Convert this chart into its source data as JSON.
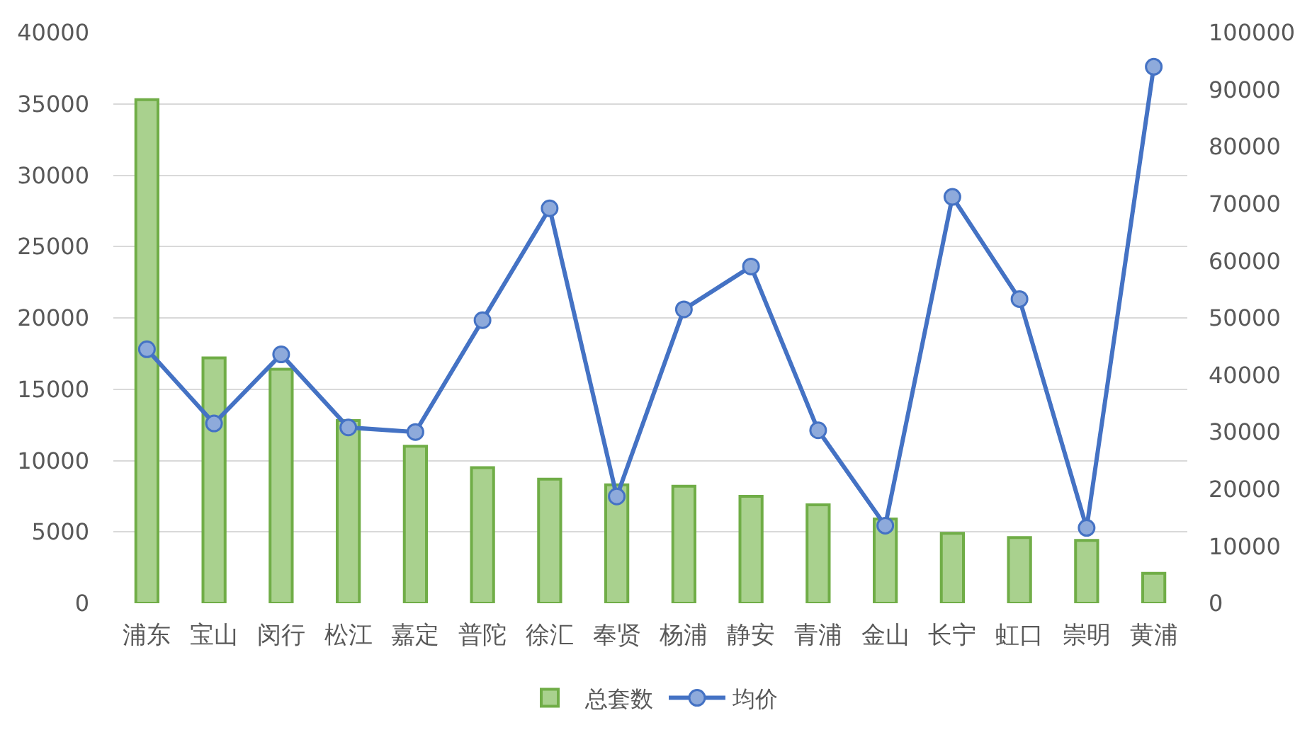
{
  "chart_data": {
    "type": "bar",
    "categories": [
      "浦东",
      "宝山",
      "闵行",
      "松江",
      "嘉定",
      "普陀",
      "徐汇",
      "奉贤",
      "杨浦",
      "静安",
      "青浦",
      "金山",
      "长宁",
      "虹口",
      "崇明",
      "黄浦"
    ],
    "series": [
      {
        "name": "总套数",
        "color": "#a9d18e",
        "values": [
          35300,
          17200,
          16400,
          12800,
          11000,
          9500,
          8700,
          8300,
          8200,
          7500,
          6900,
          5900,
          4900,
          4600,
          4400,
          2100
        ]
      },
      {
        "name": "均价",
        "type": "line",
        "axis": "y2",
        "color": "#4472c4",
        "values": [
          44500,
          31500,
          43600,
          30800,
          30000,
          49600,
          69200,
          18700,
          51500,
          59000,
          30300,
          13600,
          71200,
          53300,
          13200,
          94000
        ]
      }
    ],
    "ylim": [
      0,
      40000
    ],
    "yticks": [
      0,
      5000,
      10000,
      15000,
      20000,
      25000,
      30000,
      35000,
      40000
    ],
    "y2lim": [
      0,
      100000
    ],
    "y2ticks": [
      0,
      10000,
      20000,
      30000,
      40000,
      50000,
      60000,
      70000,
      80000,
      90000,
      100000
    ],
    "grid": "y",
    "legend": "bottom",
    "marker": "circle",
    "line_style": "solid"
  }
}
